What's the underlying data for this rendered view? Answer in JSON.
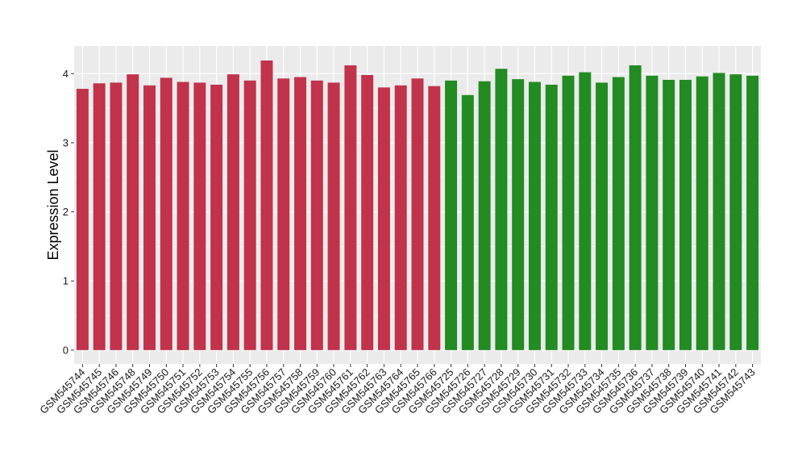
{
  "chart_data": {
    "type": "bar",
    "title": "",
    "xlabel": "",
    "ylabel": "Expression Level",
    "ylim": [
      -0.2,
      4.4
    ],
    "yticks": [
      0,
      1,
      2,
      3,
      4
    ],
    "grid": true,
    "legend": "none",
    "background_color": "#ebebeb",
    "gridline_color": "#ffffff",
    "categories": [
      "GSM545744",
      "GSM545745",
      "GSM545746",
      "GSM545748",
      "GSM545749",
      "GSM545750",
      "GSM545751",
      "GSM545752",
      "GSM545753",
      "GSM545754",
      "GSM545755",
      "GSM545756",
      "GSM545757",
      "GSM545758",
      "GSM545759",
      "GSM545760",
      "GSM545761",
      "GSM545762",
      "GSM545763",
      "GSM545764",
      "GSM545765",
      "GSM545766",
      "GSM545725",
      "GSM545726",
      "GSM545727",
      "GSM545728",
      "GSM545729",
      "GSM545730",
      "GSM545731",
      "GSM545732",
      "GSM545733",
      "GSM545734",
      "GSM545735",
      "GSM545736",
      "GSM545737",
      "GSM545738",
      "GSM545739",
      "GSM545740",
      "GSM545741",
      "GSM545742",
      "GSM545743"
    ],
    "values": [
      3.78,
      3.86,
      3.87,
      3.99,
      3.83,
      3.94,
      3.88,
      3.87,
      3.84,
      3.99,
      3.9,
      4.19,
      3.93,
      3.95,
      3.9,
      3.87,
      4.12,
      3.98,
      3.8,
      3.83,
      3.93,
      3.82,
      3.9,
      3.69,
      3.89,
      4.07,
      3.92,
      3.88,
      3.84,
      3.97,
      4.02,
      3.87,
      3.95,
      4.12,
      3.97,
      3.91,
      3.91,
      3.96,
      4.01,
      3.99,
      3.97
    ],
    "bar_colors": [
      "#c0334b",
      "#c0334b",
      "#c0334b",
      "#c0334b",
      "#c0334b",
      "#c0334b",
      "#c0334b",
      "#c0334b",
      "#c0334b",
      "#c0334b",
      "#c0334b",
      "#c0334b",
      "#c0334b",
      "#c0334b",
      "#c0334b",
      "#c0334b",
      "#c0334b",
      "#c0334b",
      "#c0334b",
      "#c0334b",
      "#c0334b",
      "#c0334b",
      "#228b22",
      "#228b22",
      "#228b22",
      "#228b22",
      "#228b22",
      "#228b22",
      "#228b22",
      "#228b22",
      "#228b22",
      "#228b22",
      "#228b22",
      "#228b22",
      "#228b22",
      "#228b22",
      "#228b22",
      "#228b22",
      "#228b22",
      "#228b22",
      "#228b22"
    ]
  }
}
